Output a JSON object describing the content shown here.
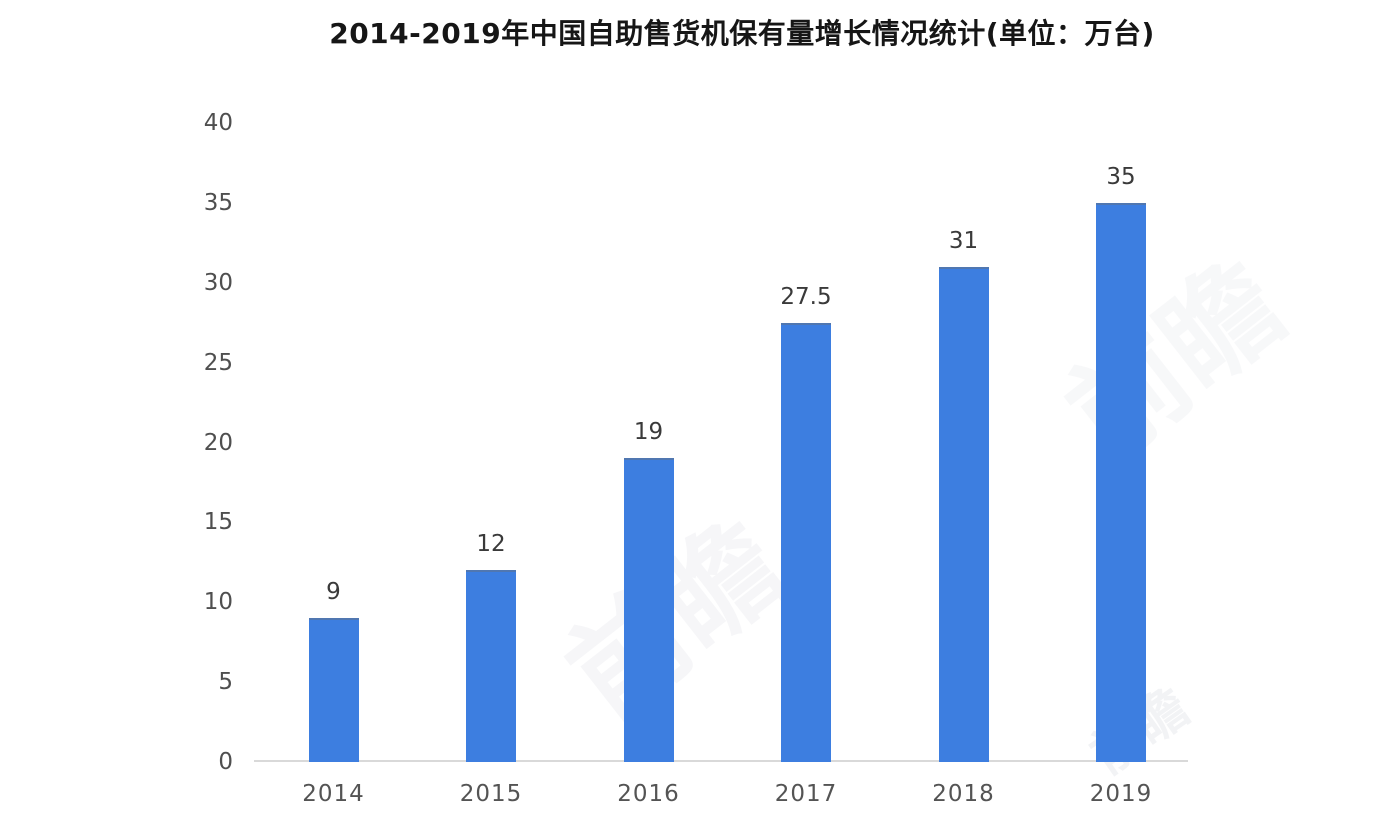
{
  "chart_data": {
    "type": "bar",
    "title": "2014-2019年中国自助售货机保有量增长情况统计(单位：万台)",
    "categories": [
      "2014",
      "2015",
      "2016",
      "2017",
      "2018",
      "2019"
    ],
    "values": [
      9,
      12,
      19,
      27.5,
      31,
      35
    ],
    "value_labels": [
      "9",
      "12",
      "19",
      "27.5",
      "31",
      "35"
    ],
    "xlabel": "",
    "ylabel": "",
    "ylim": [
      0,
      40
    ],
    "yticks": [
      0,
      5,
      10,
      15,
      20,
      25,
      30,
      35,
      40
    ],
    "grid": false,
    "legend_position": "none",
    "colors": {
      "bar": "#3d7ee0",
      "bar_top_edge": "rgba(104, 110, 120, 0.45)",
      "axis_line": "#d9d9d9",
      "tick_label": "#4f4f4f",
      "x_tick_label": "#545454",
      "value_label": "#3a3a3a",
      "title": "#161616"
    }
  },
  "watermark": {
    "text": "前瞻"
  }
}
